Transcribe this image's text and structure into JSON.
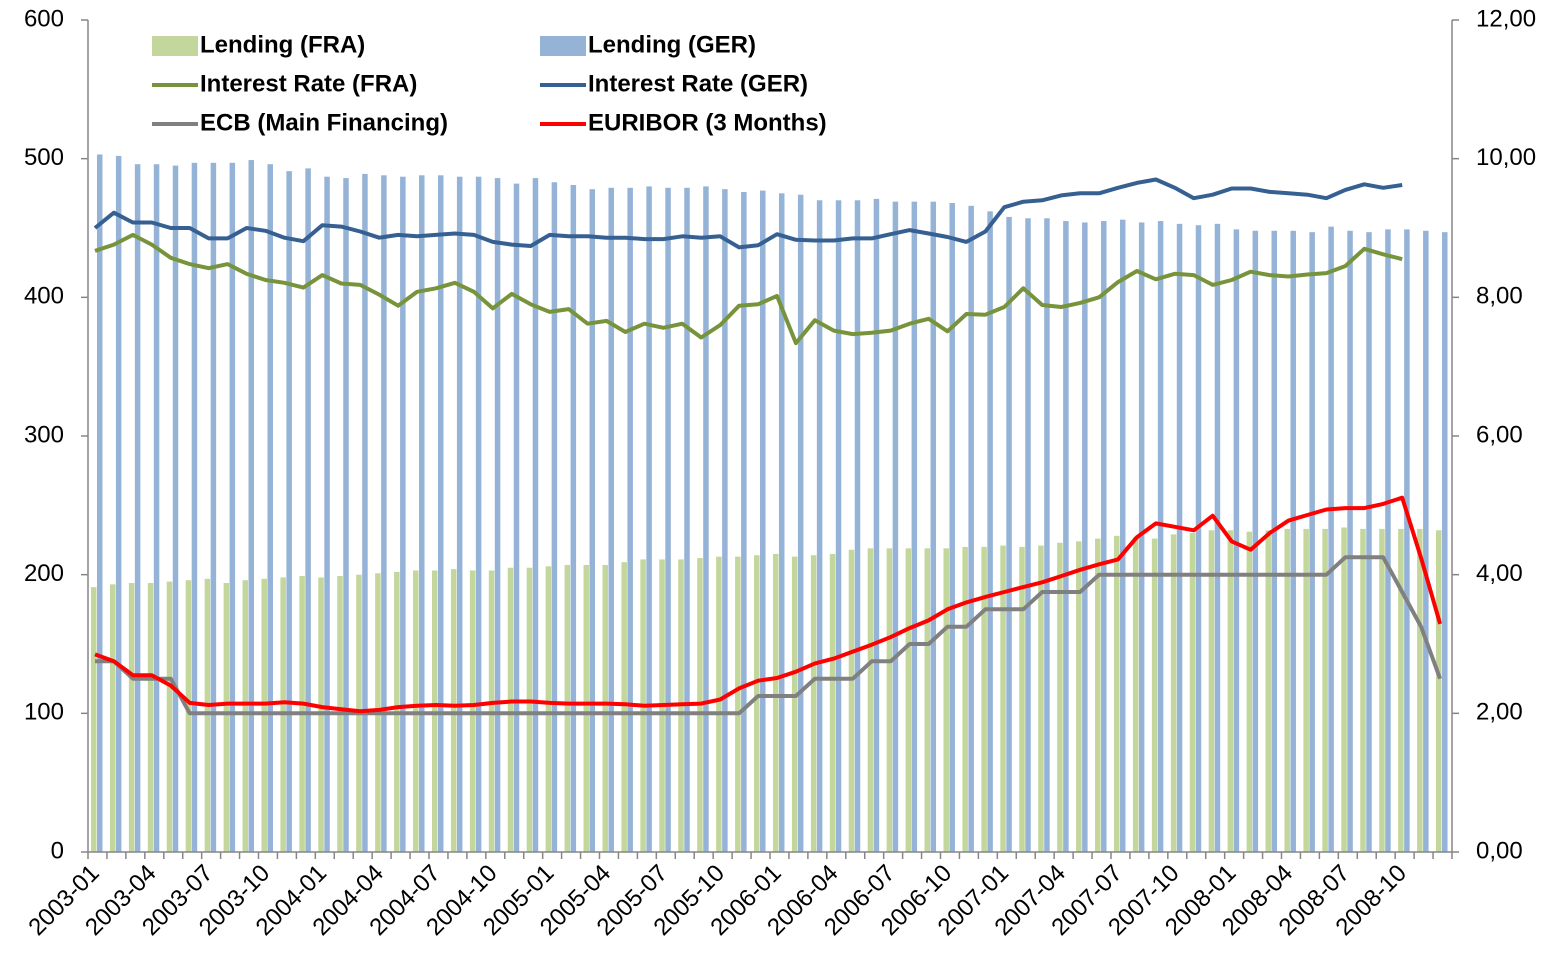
{
  "chart_data": {
    "type": "bar_line",
    "categories": [
      "2003-01",
      null,
      null,
      "2003-04",
      null,
      null,
      "2003-07",
      null,
      null,
      "2003-10",
      null,
      null,
      "2004-01",
      null,
      null,
      "2004-04",
      null,
      null,
      "2004-07",
      null,
      null,
      "2004-10",
      null,
      null,
      "2005-01",
      null,
      null,
      "2005-04",
      null,
      null,
      "2005-07",
      null,
      null,
      "2005-10",
      null,
      null,
      "2006-01",
      null,
      null,
      "2006-04",
      null,
      null,
      "2006-07",
      null,
      null,
      "2006-10",
      null,
      null,
      "2007-01",
      null,
      null,
      "2007-04",
      null,
      null,
      "2007-07",
      null,
      null,
      "2007-10",
      null,
      null,
      "2008-01",
      null,
      null,
      "2008-04",
      null,
      null,
      "2008-07",
      null,
      null,
      "2008-10",
      null,
      null
    ],
    "series": [
      {
        "name": "Lending (FRA)",
        "kind": "bar",
        "color": "#c3d69b",
        "values": [
          191,
          193,
          194,
          194,
          195,
          196,
          197,
          194,
          196,
          197,
          198,
          199,
          198,
          199,
          200,
          201,
          202,
          203,
          203,
          204,
          203,
          203,
          205,
          205,
          206,
          207,
          207,
          207,
          209,
          211,
          211,
          211,
          212,
          213,
          213,
          214,
          215,
          213,
          214,
          215,
          218,
          219,
          219,
          219,
          219,
          219,
          220,
          220,
          221,
          220,
          221,
          223,
          224,
          226,
          228,
          227,
          226,
          229,
          230,
          232,
          232,
          231,
          232,
          233,
          233,
          233,
          234,
          233,
          233,
          233,
          233,
          232
        ]
      },
      {
        "name": "Lending (GER)",
        "kind": "bar",
        "color": "#95b3d7",
        "values": [
          503,
          502,
          496,
          496,
          495,
          497,
          497,
          497,
          499,
          496,
          491,
          493,
          487,
          486,
          489,
          488,
          487,
          488,
          488,
          487,
          487,
          486,
          482,
          486,
          483,
          481,
          478,
          479,
          479,
          480,
          479,
          479,
          480,
          478,
          476,
          477,
          475,
          474,
          470,
          470,
          470,
          471,
          469,
          469,
          469,
          468,
          466,
          462,
          458,
          457,
          457,
          455,
          454,
          455,
          456,
          454,
          455,
          453,
          452,
          453,
          449,
          448,
          448,
          448,
          447,
          451,
          448,
          447,
          449,
          449,
          448,
          447
        ]
      },
      {
        "name": "Interest Rate (FRA)",
        "kind": "line",
        "axis": "y2",
        "color": "#77933c",
        "values": [
          8.67,
          8.76,
          8.9,
          8.76,
          8.57,
          8.48,
          8.42,
          8.48,
          8.34,
          8.25,
          8.21,
          8.14,
          8.32,
          8.2,
          8.18,
          8.04,
          7.88,
          8.08,
          8.13,
          8.21,
          8.08,
          7.84,
          8.05,
          7.9,
          7.79,
          7.83,
          7.62,
          7.66,
          7.5,
          7.62,
          7.56,
          7.62,
          7.42,
          7.6,
          7.88,
          7.9,
          8.02,
          7.34,
          7.67,
          7.52,
          7.47,
          7.49,
          7.52,
          7.62,
          7.69,
          7.51,
          7.76,
          7.75,
          7.86,
          8.13,
          7.89,
          7.86,
          7.92,
          8.0,
          8.22,
          8.38,
          8.26,
          8.34,
          8.32,
          8.18,
          8.25,
          8.37,
          8.32,
          8.3,
          8.33,
          8.35,
          8.45,
          8.7,
          8.62,
          8.55,
          null,
          null
        ]
      },
      {
        "name": "Interest Rate (GER)",
        "kind": "line",
        "axis": "y2",
        "color": "#376092",
        "values": [
          9.0,
          9.22,
          9.08,
          9.08,
          9.0,
          9.0,
          8.85,
          8.85,
          9.0,
          8.96,
          8.86,
          8.81,
          9.04,
          9.02,
          8.95,
          8.86,
          8.9,
          8.88,
          8.9,
          8.92,
          8.9,
          8.8,
          8.76,
          8.74,
          8.9,
          8.88,
          8.88,
          8.86,
          8.86,
          8.84,
          8.84,
          8.88,
          8.86,
          8.88,
          8.72,
          8.75,
          8.91,
          8.83,
          8.82,
          8.82,
          8.85,
          8.85,
          8.91,
          8.97,
          8.92,
          8.87,
          8.8,
          8.95,
          9.3,
          9.38,
          9.4,
          9.47,
          9.5,
          9.5,
          9.58,
          9.65,
          9.7,
          9.58,
          9.43,
          9.48,
          9.57,
          9.57,
          9.52,
          9.5,
          9.48,
          9.43,
          9.55,
          9.63,
          9.58,
          9.62,
          null,
          null
        ]
      },
      {
        "name": "ECB (Main Financing)",
        "kind": "line",
        "axis": "y2",
        "color": "#808080",
        "values": [
          2.75,
          2.75,
          2.5,
          2.5,
          2.5,
          2.0,
          2.0,
          2.0,
          2.0,
          2.0,
          2.0,
          2.0,
          2.0,
          2.0,
          2.0,
          2.0,
          2.0,
          2.0,
          2.0,
          2.0,
          2.0,
          2.0,
          2.0,
          2.0,
          2.0,
          2.0,
          2.0,
          2.0,
          2.0,
          2.0,
          2.0,
          2.0,
          2.0,
          2.0,
          2.0,
          2.25,
          2.25,
          2.25,
          2.5,
          2.5,
          2.5,
          2.75,
          2.75,
          3.0,
          3.0,
          3.25,
          3.25,
          3.5,
          3.5,
          3.5,
          3.75,
          3.75,
          3.75,
          4.0,
          4.0,
          4.0,
          4.0,
          4.0,
          4.0,
          4.0,
          4.0,
          4.0,
          4.0,
          4.0,
          4.0,
          4.0,
          4.25,
          4.25,
          4.25,
          3.75,
          3.25,
          2.5
        ]
      },
      {
        "name": "EURIBOR (3 Months)",
        "kind": "line",
        "axis": "y2",
        "color": "#ff0000",
        "values": [
          2.85,
          2.75,
          2.55,
          2.55,
          2.4,
          2.15,
          2.12,
          2.14,
          2.14,
          2.14,
          2.16,
          2.14,
          2.09,
          2.06,
          2.03,
          2.05,
          2.09,
          2.11,
          2.12,
          2.11,
          2.12,
          2.15,
          2.17,
          2.17,
          2.15,
          2.14,
          2.14,
          2.14,
          2.13,
          2.11,
          2.12,
          2.13,
          2.14,
          2.2,
          2.36,
          2.47,
          2.51,
          2.6,
          2.72,
          2.79,
          2.89,
          2.99,
          3.1,
          3.23,
          3.34,
          3.5,
          3.6,
          3.68,
          3.75,
          3.82,
          3.89,
          3.98,
          4.07,
          4.15,
          4.22,
          4.54,
          4.74,
          4.69,
          4.64,
          4.85,
          4.48,
          4.36,
          4.6,
          4.78,
          4.86,
          4.94,
          4.96,
          4.96,
          5.02,
          5.11,
          4.24,
          3.29
        ]
      }
    ],
    "ylim": [
      0,
      600
    ],
    "yticks": [
      0,
      100,
      200,
      300,
      400,
      500,
      600
    ],
    "y2lim": [
      0,
      12
    ],
    "y2ticks": [
      {
        "value": 0,
        "label": "0,00"
      },
      {
        "value": 2,
        "label": "2,00"
      },
      {
        "value": 4,
        "label": "4,00"
      },
      {
        "value": 6,
        "label": "6,00"
      },
      {
        "value": 8,
        "label": "8,00"
      },
      {
        "value": 10,
        "label": "10,00"
      },
      {
        "value": 12,
        "label": "12,00"
      }
    ],
    "grid": false,
    "legend": "top-left"
  }
}
